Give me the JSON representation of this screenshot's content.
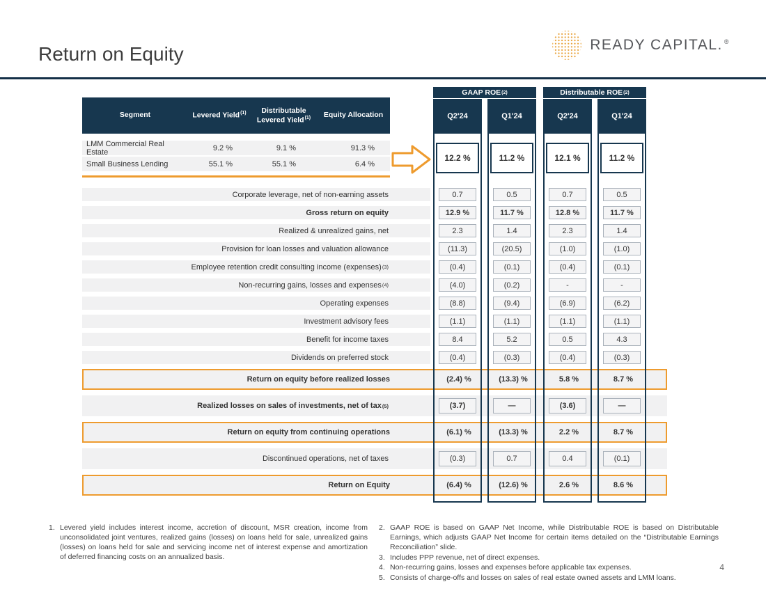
{
  "slide": {
    "title": "Return on Equity",
    "page_number": "4"
  },
  "logo": {
    "text": "READY CAPITAL.",
    "registered": "®",
    "dot_color": "#E8A33B"
  },
  "colors": {
    "navy": "#17374F",
    "orange": "#EE9B2E",
    "row_gray": "#F1F1F2"
  },
  "roe_groups": {
    "gaap": {
      "title": "GAAP ROE",
      "sup": "(2)",
      "quarters": [
        "Q2'24",
        "Q1'24"
      ]
    },
    "distributable": {
      "title": "Distributable ROE",
      "sup": "(2)",
      "quarters": [
        "Q2'24",
        "Q1'24"
      ]
    }
  },
  "left_table": {
    "headers": [
      {
        "label": "Segment",
        "sup": ""
      },
      {
        "label": "Levered Yield",
        "sup": "(1)"
      },
      {
        "label": "Distributable Levered Yield",
        "sup": "(1)"
      },
      {
        "label": "Equity Allocation",
        "sup": ""
      }
    ],
    "rows": [
      {
        "segment": "LMM Commercial Real Estate",
        "levered_yield": "9.2 %",
        "distributable_levered_yield": "9.1 %",
        "equity_allocation": "91.3 %"
      },
      {
        "segment": "Small Business Lending",
        "levered_yield": "55.1 %",
        "distributable_levered_yield": "55.1 %",
        "equity_allocation": "6.4 %"
      }
    ]
  },
  "top_roe": {
    "values": [
      "12.2 %",
      "11.2 %",
      "12.1 %",
      "11.2 %"
    ]
  },
  "reconciliation": {
    "rows": [
      {
        "label": "Corporate leverage, net of non-earning assets",
        "values": [
          "0.7",
          "0.5",
          "0.7",
          "0.5"
        ]
      },
      {
        "label": "Gross return on equity",
        "bold": true,
        "values": [
          "12.9 %",
          "11.7 %",
          "12.8 %",
          "11.7 %"
        ]
      },
      {
        "label": "Realized & unrealized gains, net",
        "values": [
          "2.3",
          "1.4",
          "2.3",
          "1.4"
        ]
      },
      {
        "label": "Provision for loan losses and valuation allowance",
        "values": [
          "(11.3)",
          "(20.5)",
          "(1.0)",
          "(1.0)"
        ]
      },
      {
        "label": "Employee retention credit consulting income (expenses)",
        "sup": "(3)",
        "values": [
          "(0.4)",
          "(0.1)",
          "(0.4)",
          "(0.1)"
        ]
      },
      {
        "label": "Non-recurring gains, losses and expenses",
        "sup": "(4)",
        "values": [
          "(4.0)",
          "(0.2)",
          "-",
          "-"
        ]
      },
      {
        "label": "Operating expenses",
        "values": [
          "(8.8)",
          "(9.4)",
          "(6.9)",
          "(6.2)"
        ]
      },
      {
        "label": "Investment advisory fees",
        "values": [
          "(1.1)",
          "(1.1)",
          "(1.1)",
          "(1.1)"
        ]
      },
      {
        "label": "Benefit for income taxes",
        "values": [
          "8.4",
          "5.2",
          "0.5",
          "4.3"
        ]
      },
      {
        "label": "Dividends on preferred stock",
        "values": [
          "(0.4)",
          "(0.3)",
          "(0.4)",
          "(0.3)"
        ]
      },
      {
        "label": "Return on equity before realized losses",
        "highlight": true,
        "values": [
          "(2.4) %",
          "(13.3) %",
          "5.8 %",
          "8.7 %"
        ]
      },
      {
        "label": "Realized losses on sales of investments, net of tax",
        "sup": "(5)",
        "tall": true,
        "bold": true,
        "values": [
          "(3.7)",
          "—",
          "(3.6)",
          "—"
        ]
      },
      {
        "label": "Return on equity from continuing operations",
        "highlight": true,
        "values": [
          "(6.1) %",
          "(13.3) %",
          "2.2 %",
          "8.7 %"
        ]
      },
      {
        "label": "Discontinued operations, net of taxes",
        "tall": true,
        "values": [
          "(0.3)",
          "0.7",
          "0.4",
          "(0.1)"
        ]
      },
      {
        "label": "Return on Equity",
        "highlight": true,
        "values": [
          "(6.4) %",
          "(12.6) %",
          "2.6 %",
          "8.6 %"
        ]
      }
    ]
  },
  "footnotes": {
    "left": [
      {
        "num": "1.",
        "text": "Levered yield includes interest income, accretion of discount, MSR creation, income from unconsolidated joint ventures, realized gains (losses) on loans held for sale, unrealized gains (losses) on loans held for sale and servicing income net of interest expense and amortization of deferred financing costs on an annualized basis."
      }
    ],
    "right": [
      {
        "num": "2.",
        "text": "GAAP ROE is based on GAAP Net Income, while Distributable ROE is based on Distributable Earnings, which adjusts GAAP Net Income for certain items detailed on the “Distributable Earnings Reconciliation” slide."
      },
      {
        "num": "3.",
        "text": "Includes PPP revenue, net of direct expenses."
      },
      {
        "num": "4.",
        "text": "Non-recurring gains, losses and expenses before applicable tax expenses."
      },
      {
        "num": "5.",
        "text": "Consists of charge-offs and losses on sales of real estate owned assets and LMM loans."
      }
    ]
  }
}
